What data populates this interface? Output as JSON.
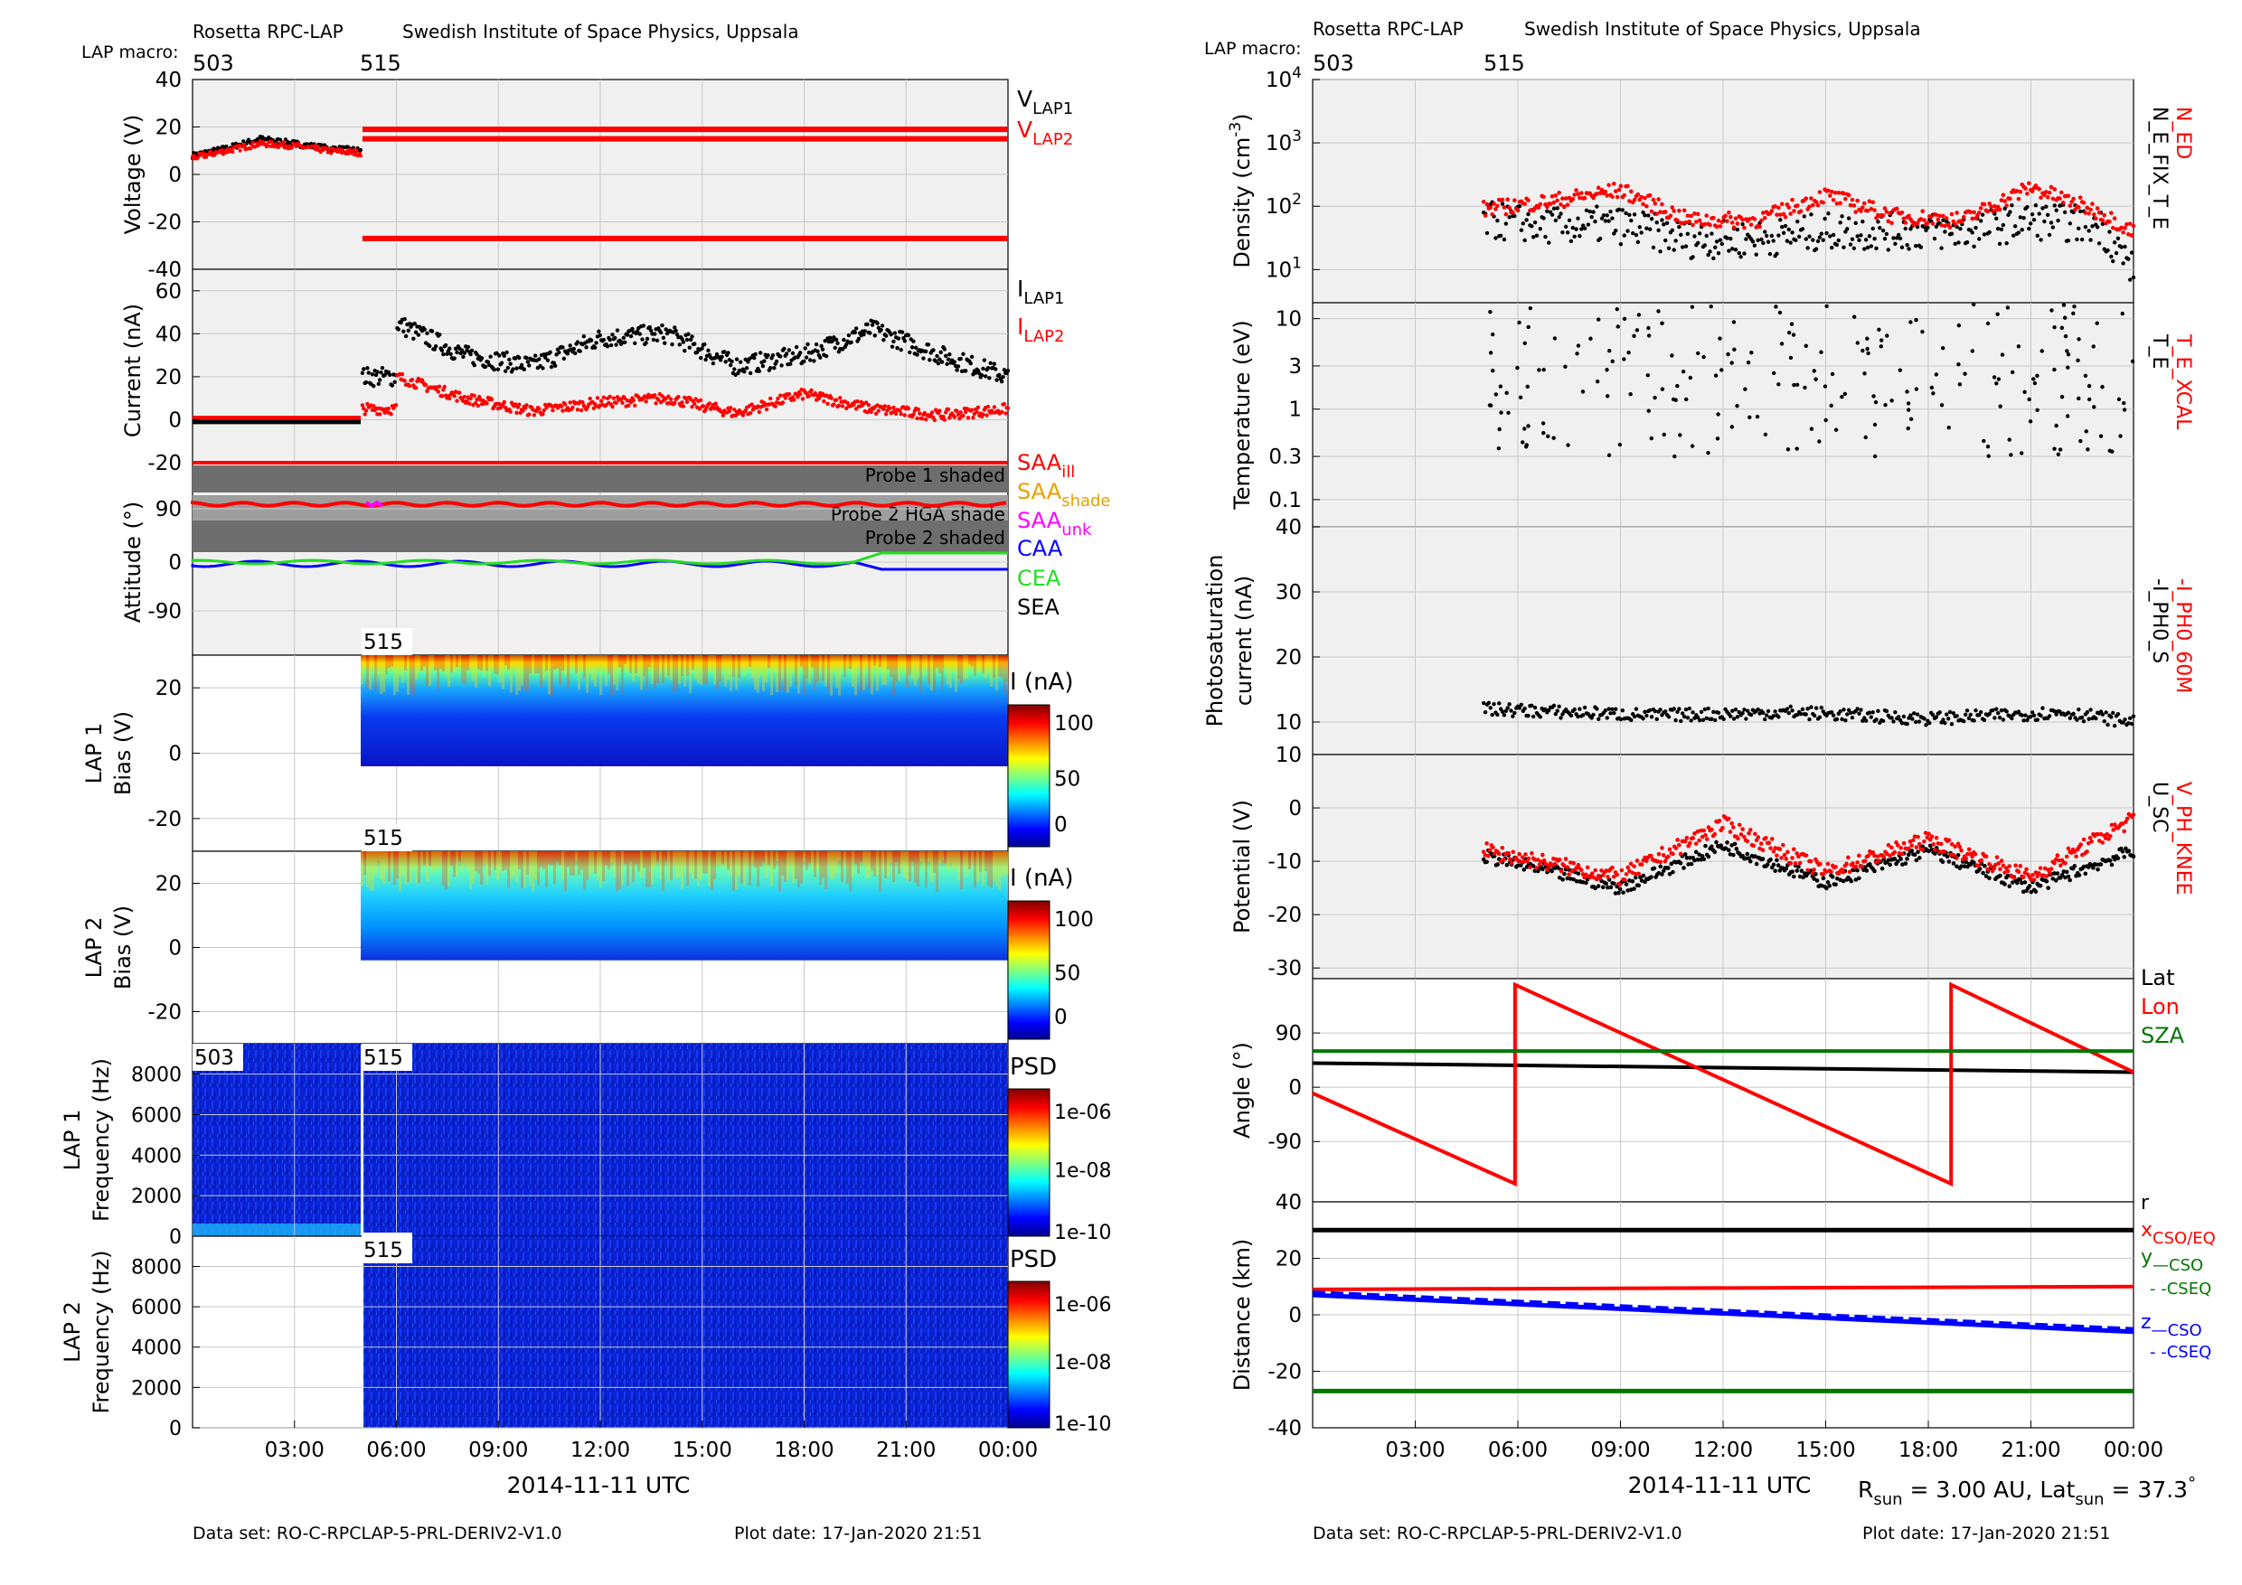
{
  "left_header": {
    "instrument": "Rosetta RPC-LAP",
    "institute": "Swedish Institute of Space Physics, Uppsala",
    "macro_label": "LAP macro:",
    "macro1": "503",
    "macro2": "515"
  },
  "right_header": {
    "instrument": "Rosetta RPC-LAP",
    "institute": "Swedish Institute of Space Physics, Uppsala",
    "macro_label": "LAP macro:",
    "macro1": "503",
    "macro2": "515"
  },
  "left_footer": {
    "xlabel": "2014-11-11 UTC",
    "dataset": "Data set: RO-C-RPCLAP-5-PRL-DERIV2-V1.0",
    "plotdate": "Plot date: 17-Jan-2020 21:51"
  },
  "right_footer": {
    "xlabel": "2014-11-11 UTC",
    "dataset": "Data set: RO-C-RPCLAP-5-PRL-DERIV2-V1.0",
    "plotdate": "Plot date: 17-Jan-2020 21:51",
    "rsun_pre": "R",
    "rsun_sub": "sun",
    "rsun_mid": " = 3.00 AU, Lat",
    "lat_sub": "sun",
    "lat_post": " = 37.3",
    "deg": "°"
  },
  "xticks": [
    "03:00",
    "06:00",
    "09:00",
    "12:00",
    "15:00",
    "18:00",
    "21:00",
    "00:00"
  ],
  "panels": {
    "voltage": {
      "ylabel": "Voltage (V)",
      "yticks": [
        "40",
        "20",
        "0",
        "-20",
        "-40"
      ],
      "legend": [
        {
          "main": "V",
          "sub": "LAP1",
          "color": "#000000"
        },
        {
          "main": "V",
          "sub": "LAP2",
          "color": "#ff0000"
        }
      ]
    },
    "current": {
      "ylabel": "Current (nA)",
      "yticks": [
        "60",
        "40",
        "20",
        "0",
        "-20"
      ],
      "legend": [
        {
          "main": "I",
          "sub": "LAP1",
          "color": "#000000"
        },
        {
          "main": "I",
          "sub": "LAP2",
          "color": "#ff0000"
        }
      ]
    },
    "attitude": {
      "ylabel": "Attitude (°)",
      "yticks": [
        "90",
        "0",
        "-90"
      ],
      "bands": [
        "Probe 1 shaded",
        "Probe 2 HGA shade",
        "Probe 2 shaded"
      ],
      "legend": [
        {
          "main": "SAA",
          "sub": "ill",
          "color": "#ff0000"
        },
        {
          "main": "SAA",
          "sub": "shade",
          "color": "#e8a000"
        },
        {
          "main": "SAA",
          "sub": "unk",
          "color": "#ff00ff"
        },
        {
          "main": "CAA",
          "sub": "",
          "color": "#0000ff"
        },
        {
          "main": "CEA",
          "sub": "",
          "color": "#22dd22"
        },
        {
          "main": "SEA",
          "sub": "",
          "color": "#000000"
        }
      ]
    },
    "lap1bias": {
      "ylabel1": "LAP 1",
      "ylabel2": "Bias (V)",
      "yticks": [
        "20",
        "0",
        "-20"
      ],
      "tag": "515",
      "cbar_title": "I (nA)",
      "cbar_ticks": [
        "100",
        "50",
        "0"
      ]
    },
    "lap2bias": {
      "ylabel1": "LAP 2",
      "ylabel2": "Bias (V)",
      "yticks": [
        "20",
        "0",
        "-20"
      ],
      "tag": "515",
      "cbar_title": "I (nA)",
      "cbar_ticks": [
        "100",
        "50",
        "0"
      ]
    },
    "lap1freq": {
      "ylabel1": "LAP 1",
      "ylabel2": "Frequency (Hz)",
      "yticks": [
        "8000",
        "6000",
        "4000",
        "2000",
        "0"
      ],
      "tag1": "503",
      "tag2": "515",
      "cbar_title": "PSD",
      "cbar_ticks": [
        "1e-06",
        "1e-08",
        "1e-10"
      ]
    },
    "lap2freq": {
      "ylabel1": "LAP 2",
      "ylabel2": "Frequency (Hz)",
      "yticks": [
        "8000",
        "6000",
        "4000",
        "2000",
        "0"
      ],
      "tag": "515",
      "cbar_title": "PSD",
      "cbar_ticks": [
        "1e-06",
        "1e-08",
        "1e-10"
      ]
    },
    "density": {
      "ylabel": "Density (cm",
      "ylabel_sup": "-3",
      "ylabel_end": ")",
      "ytick_sups": [
        "4",
        "3",
        "2",
        "1"
      ],
      "ytick_base": "10",
      "rlabel_black": "N_E_FIX_T_E",
      "rlabel_red": "N_ED"
    },
    "temperature": {
      "ylabel": "Temperature (eV)",
      "yticks": [
        "10",
        "3",
        "1",
        "0.3",
        "0.1"
      ],
      "rlabel_black": "T_E",
      "rlabel_red": "T_E_XCAL"
    },
    "photosat": {
      "ylabel1": "Photosaturation",
      "ylabel2": "current (nA)",
      "yticks": [
        "40",
        "30",
        "20",
        "10"
      ],
      "rlabel_black": "-I_PH0_S",
      "rlabel_red": "-I_PH0_60M"
    },
    "potential": {
      "ylabel": "Potential (V)",
      "yticks": [
        "10",
        "0",
        "-10",
        "-20",
        "-30"
      ],
      "rlabel_black": "U_SC",
      "rlabel_red": "V_PH_KNEE"
    },
    "angle": {
      "ylabel": "Angle (°)",
      "yticks": [
        "90",
        "0",
        "-90"
      ],
      "legend": [
        {
          "main": "Lat",
          "color": "#000000"
        },
        {
          "main": "Lon",
          "color": "#ff0000"
        },
        {
          "main": "SZA",
          "color": "#007700"
        }
      ]
    },
    "distance": {
      "ylabel": "Distance (km)",
      "yticks": [
        "40",
        "20",
        "0",
        "-20",
        "-40"
      ],
      "legend": [
        {
          "main": "r",
          "sub": "",
          "color": "#000000"
        },
        {
          "main": "x",
          "sub": "CSO/EQ",
          "color": "#ff0000"
        },
        {
          "main": "y",
          "sub": "—CSO",
          "color": "#007700"
        },
        {
          "main": "",
          "sub": "- -CSEQ",
          "color": "#007700"
        },
        {
          "main": "z",
          "sub": "—CSO",
          "color": "#0000ff"
        },
        {
          "main": "",
          "sub": "- -CSEQ",
          "color": "#0000ff"
        }
      ]
    }
  },
  "chart_data": [
    {
      "type": "scatter",
      "title": "",
      "xlabel": "2014-11-11 UTC",
      "ylabel": "Voltage (V)",
      "ylim": [
        -40,
        40
      ],
      "series": [
        {
          "name": "VLAP1",
          "x": [
            "00:00",
            "05:00"
          ],
          "y": [
            8,
            10
          ]
        },
        {
          "name": "VLAP2",
          "segments": [
            {
              "x": [
                "00:00",
                "05:00"
              ],
              "y": [
                8,
                10
              ]
            },
            {
              "x": [
                "05:00",
                "24:00"
              ],
              "y": [
                19,
                19
              ]
            },
            {
              "x": [
                "05:00",
                "24:00"
              ],
              "y": [
                15,
                15
              ]
            },
            {
              "x": [
                "05:00",
                "24:00"
              ],
              "y": [
                -27,
                -27
              ]
            }
          ]
        }
      ]
    },
    {
      "type": "scatter",
      "xlabel": "2014-11-11 UTC",
      "ylabel": "Current (nA)",
      "ylim": [
        -20,
        70
      ],
      "series": [
        {
          "name": "ILAP1",
          "x": [
            "00:00",
            "05:00",
            "06:00",
            "08:00",
            "10:00",
            "12:00",
            "14:00",
            "16:00",
            "18:00",
            "20:00",
            "22:00",
            "24:00"
          ],
          "y": [
            -1,
            -1,
            45,
            30,
            25,
            38,
            40,
            25,
            30,
            42,
            30,
            20
          ]
        },
        {
          "name": "ILAP2",
          "x": [
            "00:00",
            "05:00",
            "06:00",
            "08:00",
            "10:00",
            "12:00",
            "14:00",
            "16:00",
            "18:00",
            "20:00",
            "22:00",
            "24:00"
          ],
          "y": [
            0,
            0,
            20,
            10,
            4,
            8,
            10,
            3,
            12,
            5,
            2,
            5
          ]
        }
      ]
    },
    {
      "type": "line",
      "xlabel": "2014-11-11 UTC",
      "ylabel": "Attitude (°)",
      "ylim": [
        -180,
        180
      ],
      "series": [
        {
          "name": "SAAill",
          "y": [
            95,
            95
          ]
        },
        {
          "name": "CAA",
          "y": [
            0,
            -2
          ]
        },
        {
          "name": "CEA",
          "y": [
            0,
            3
          ]
        }
      ]
    },
    {
      "type": "heatmap",
      "ylabel": "LAP 1 Bias (V)",
      "ylim": [
        -30,
        30
      ],
      "zlabel": "I (nA)",
      "zlim": [
        0,
        100
      ]
    },
    {
      "type": "heatmap",
      "ylabel": "LAP 2 Bias (V)",
      "ylim": [
        -30,
        30
      ],
      "zlabel": "I (nA)",
      "zlim": [
        0,
        100
      ]
    },
    {
      "type": "heatmap",
      "ylabel": "LAP 1 Frequency (Hz)",
      "ylim": [
        0,
        9500
      ],
      "zlabel": "PSD",
      "zlim": [
        "1e-10",
        "1e-06"
      ]
    },
    {
      "type": "heatmap",
      "ylabel": "LAP 2 Frequency (Hz)",
      "ylim": [
        0,
        9500
      ],
      "zlabel": "PSD",
      "zlim": [
        "1e-10",
        "1e-06"
      ]
    },
    {
      "type": "scatter",
      "ylabel": "Density (cm-3)",
      "yscale": "log",
      "ylim": [
        3,
        10000
      ],
      "series": [
        {
          "name": "N_ED",
          "x": [
            "05:00",
            "07:00",
            "09:00",
            "11:00",
            "13:00",
            "15:00",
            "17:00",
            "19:00",
            "21:00",
            "23:00",
            "24:00"
          ],
          "y": [
            90,
            120,
            180,
            60,
            60,
            150,
            70,
            60,
            200,
            80,
            40
          ]
        },
        {
          "name": "N_E_FIX_T_E",
          "x": [
            "05:00",
            "07:00",
            "09:00",
            "11:00",
            "13:00",
            "15:00",
            "17:00",
            "19:00",
            "21:00",
            "23:00",
            "24:00"
          ],
          "y": [
            60,
            50,
            50,
            30,
            30,
            40,
            40,
            40,
            60,
            50,
            10
          ]
        }
      ]
    },
    {
      "type": "scatter",
      "ylabel": "Temperature (eV)",
      "yscale": "log",
      "ylim": [
        0.05,
        15
      ],
      "series": [
        {
          "name": "T_E",
          "x": [
            "05:00",
            "24:00"
          ],
          "y": [
            2,
            2
          ]
        }
      ]
    },
    {
      "type": "scatter",
      "ylabel": "Photosaturation current (nA)",
      "ylim": [
        10,
        40
      ],
      "series": [
        {
          "name": "-I_PH0_S",
          "x": [
            "05:00",
            "24:00"
          ],
          "y": [
            12,
            10
          ]
        }
      ]
    },
    {
      "type": "scatter",
      "ylabel": "Potential (V)",
      "ylim": [
        -32,
        10
      ],
      "series": [
        {
          "name": "U_SC",
          "x": [
            "05:00",
            "09:00",
            "12:00",
            "15:00",
            "18:00",
            "21:00",
            "24:00"
          ],
          "y": [
            -9,
            -15,
            -7,
            -14,
            -8,
            -15,
            -8
          ]
        },
        {
          "name": "V_PH_KNEE",
          "x": [
            "05:00",
            "09:00",
            "12:00",
            "15:00",
            "18:00",
            "21:00",
            "24:00"
          ],
          "y": [
            -8,
            -13,
            -3,
            -12,
            -6,
            -13,
            -2
          ]
        }
      ]
    },
    {
      "type": "line",
      "ylabel": "Angle (°)",
      "ylim": [
        -180,
        180
      ],
      "series": [
        {
          "name": "Lat",
          "x": [
            "00:00",
            "24:00"
          ],
          "y": [
            40,
            25
          ]
        },
        {
          "name": "Lon",
          "x": [
            "00:00",
            "05:55",
            "05:55",
            "18:40",
            "18:40",
            "24:00"
          ],
          "y": [
            -10,
            -160,
            170,
            -160,
            170,
            25
          ]
        },
        {
          "name": "SZA",
          "x": [
            "00:00",
            "24:00"
          ],
          "y": [
            60,
            60
          ]
        }
      ]
    },
    {
      "type": "line",
      "ylabel": "Distance (km)",
      "ylim": [
        -40,
        40
      ],
      "series": [
        {
          "name": "r",
          "x": [
            "00:00",
            "24:00"
          ],
          "y": [
            30,
            30
          ]
        },
        {
          "name": "xCSO/EQ",
          "x": [
            "00:00",
            "24:00"
          ],
          "y": [
            9,
            10
          ]
        },
        {
          "name": "yCSO",
          "x": [
            "00:00",
            "24:00"
          ],
          "y": [
            -27,
            -27
          ]
        },
        {
          "name": "zCSO",
          "x": [
            "00:00",
            "24:00"
          ],
          "y": [
            7,
            -6
          ]
        },
        {
          "name": "zCSEQ",
          "x": [
            "00:00",
            "24:00"
          ],
          "y": [
            8,
            -5
          ]
        }
      ]
    }
  ]
}
